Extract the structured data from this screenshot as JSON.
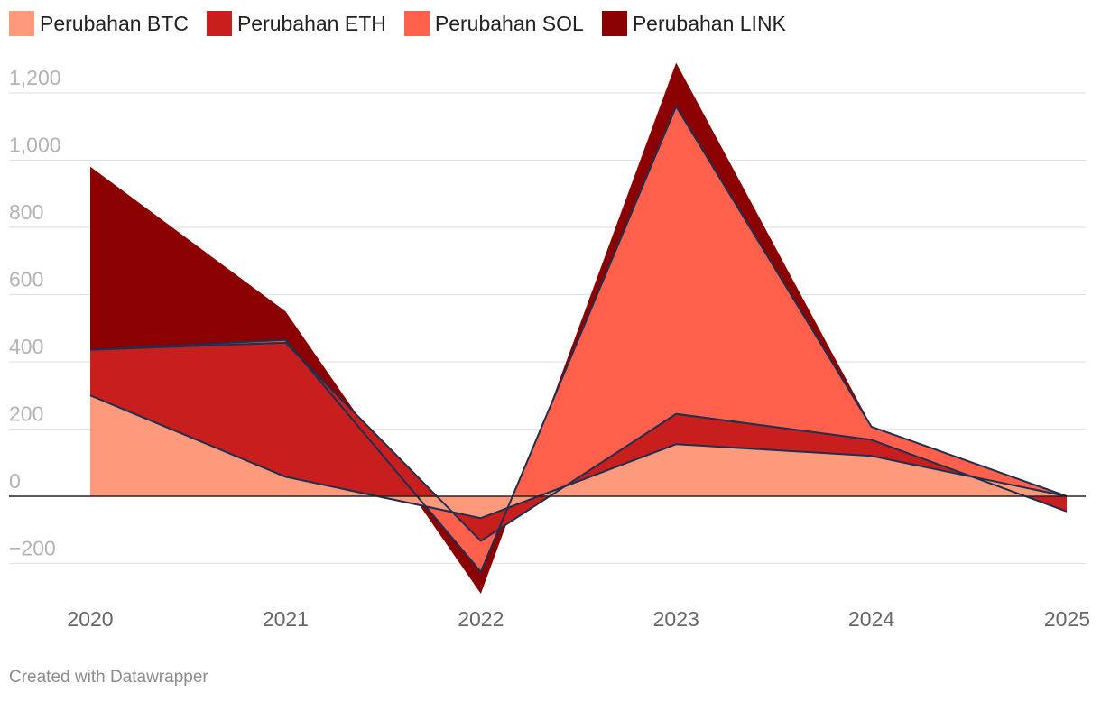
{
  "chart_data": {
    "type": "area",
    "stacked": true,
    "x": [
      "2020",
      "2021",
      "2022",
      "2023",
      "2024",
      "2025"
    ],
    "series": [
      {
        "name": "Perubahan BTC",
        "color": "#fe9a7c",
        "values": [
          300,
          58,
          -65,
          155,
          120,
          0
        ]
      },
      {
        "name": "Perubahan ETH",
        "color": "#c81e1e",
        "values": [
          136,
          399,
          -68,
          90,
          48,
          -45
        ]
      },
      {
        "name": "Perubahan SOL",
        "color": "#ff604c",
        "values": [
          0,
          8,
          -92,
          915,
          39,
          45
        ]
      },
      {
        "name": "Perubahan LINK",
        "color": "#8b0000",
        "values": [
          545,
          85,
          -65,
          130,
          2,
          -2
        ]
      }
    ],
    "yticks": [
      "1,200",
      "1,000",
      "800",
      "600",
      "400",
      "200",
      "0",
      "-200"
    ],
    "ytick_values": [
      1200,
      1000,
      800,
      600,
      400,
      200,
      0,
      -200
    ],
    "ylim": [
      -300,
      1300
    ],
    "grid": true,
    "legend_position": "top-left",
    "line_color": "#1e3050"
  },
  "footer": {
    "credit": "Created with Datawrapper"
  }
}
